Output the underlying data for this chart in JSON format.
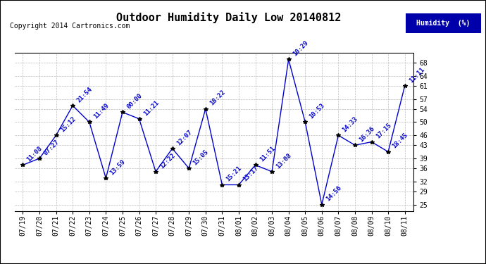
{
  "title": "Outdoor Humidity Daily Low 20140812",
  "copyright": "Copyright 2014 Cartronics.com",
  "legend_label": "Humidity  (%)",
  "dates": [
    "07/19",
    "07/20",
    "07/21",
    "07/22",
    "07/23",
    "07/24",
    "07/25",
    "07/26",
    "07/27",
    "07/28",
    "07/29",
    "07/30",
    "07/31",
    "08/01",
    "08/02",
    "08/03",
    "08/04",
    "08/05",
    "08/06",
    "08/07",
    "08/08",
    "08/09",
    "08/10",
    "08/11"
  ],
  "values": [
    37,
    39,
    46,
    55,
    50,
    33,
    53,
    51,
    35,
    42,
    36,
    54,
    31,
    31,
    37,
    35,
    69,
    50,
    25,
    46,
    43,
    44,
    41,
    61
  ],
  "times": [
    "11:08",
    "07:27",
    "15:12",
    "21:54",
    "11:49",
    "13:59",
    "00:00",
    "11:21",
    "12:22",
    "12:07",
    "15:05",
    "18:22",
    "15:21",
    "13:17",
    "11:51",
    "13:08",
    "10:29",
    "10:53",
    "14:56",
    "14:33",
    "16:36",
    "17:15",
    "18:45",
    "11:11"
  ],
  "line_color": "#0000cc",
  "marker_color": "#000000",
  "label_color": "#0000cc",
  "background_color": "#ffffff",
  "grid_color": "#bbbbbb",
  "ylim_min": 23,
  "ylim_max": 71,
  "yticks": [
    25,
    29,
    32,
    36,
    39,
    43,
    46,
    50,
    54,
    57,
    61,
    64,
    68
  ],
  "legend_bg": "#0000aa",
  "legend_fg": "#ffffff",
  "title_fontsize": 11,
  "label_fontsize": 6.5,
  "tick_fontsize": 7,
  "copyright_fontsize": 7
}
